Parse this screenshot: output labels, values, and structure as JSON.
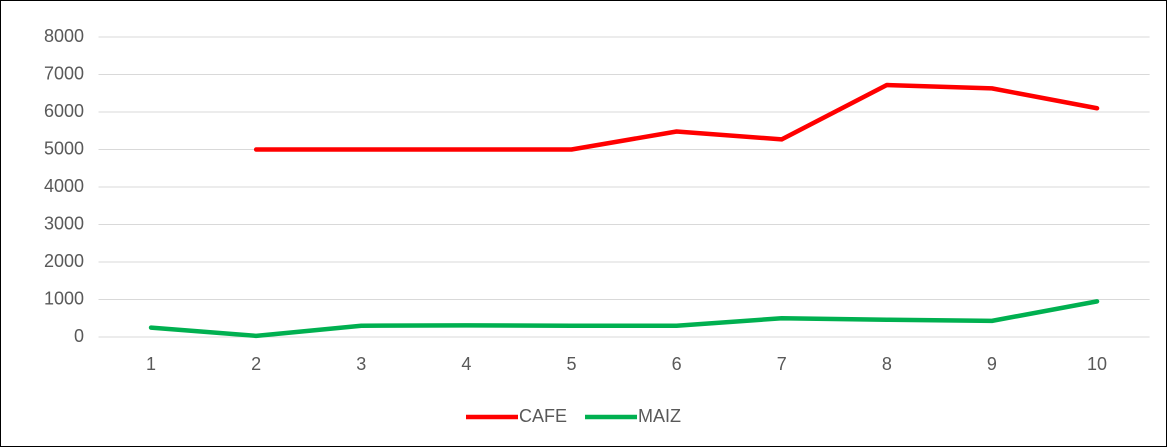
{
  "chart_data": {
    "type": "line",
    "categories": [
      "1",
      "2",
      "3",
      "4",
      "5",
      "6",
      "7",
      "8",
      "9",
      "10"
    ],
    "series": [
      {
        "name": "CAFE",
        "color": "#ff0000",
        "values": [
          null,
          5000,
          5000,
          5000,
          5000,
          5480,
          5270,
          6720,
          6630,
          6100
        ]
      },
      {
        "name": "MAIZ",
        "color": "#00b050",
        "values": [
          250,
          30,
          300,
          310,
          300,
          300,
          500,
          460,
          430,
          950
        ]
      }
    ],
    "ylim": [
      0,
      8000
    ],
    "yticks": [
      0,
      1000,
      2000,
      3000,
      4000,
      5000,
      6000,
      7000,
      8000
    ],
    "grid": true,
    "legend": "bottom"
  }
}
